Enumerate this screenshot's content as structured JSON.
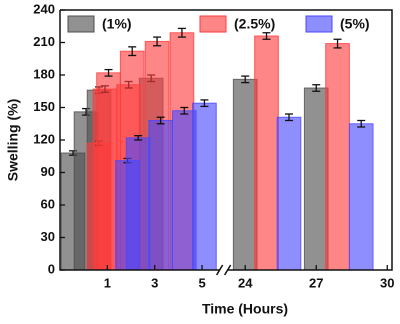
{
  "chart_data": {
    "type": "bar",
    "x_label": "Time (Hours)",
    "y_label": "Swelling (%)",
    "xlim": [
      -1,
      30.2
    ],
    "x_break": [
      5.7,
      23.3
    ],
    "xticks": [
      1,
      3,
      5,
      24,
      27,
      30
    ],
    "ylim": [
      0,
      240
    ],
    "yticks": [
      0,
      30,
      60,
      90,
      120,
      150,
      180,
      210,
      240
    ],
    "bar_width": 1,
    "series": [
      {
        "name": "(1%)",
        "color": "#4d4d4d",
        "x": [
          -0.45,
          0.1,
          0.65,
          2.85,
          24,
          27
        ],
        "values": [
          108,
          146,
          166,
          177,
          176,
          168
        ],
        "errors": [
          2,
          3,
          3,
          3,
          3,
          3
        ]
      },
      {
        "name": "(2.5%)",
        "color": "#ff3b3b",
        "x": [
          0.65,
          0.9,
          1.05,
          1.9,
          2.05,
          3.1,
          4.15,
          24.9,
          27.9
        ],
        "values": [
          117,
          167,
          182,
          171,
          202,
          211,
          219,
          216,
          209
        ],
        "errors": [
          2,
          3,
          3,
          3,
          4,
          4,
          4,
          3,
          4
        ]
      },
      {
        "name": "(5%)",
        "color": "#4848ff",
        "x": [
          1.85,
          2.3,
          3.25,
          4.25,
          5.1,
          25.85,
          28.9
        ],
        "values": [
          101,
          122,
          138,
          147,
          154,
          141,
          135
        ],
        "errors": [
          2,
          2,
          3,
          3,
          3,
          3,
          3
        ]
      }
    ]
  }
}
